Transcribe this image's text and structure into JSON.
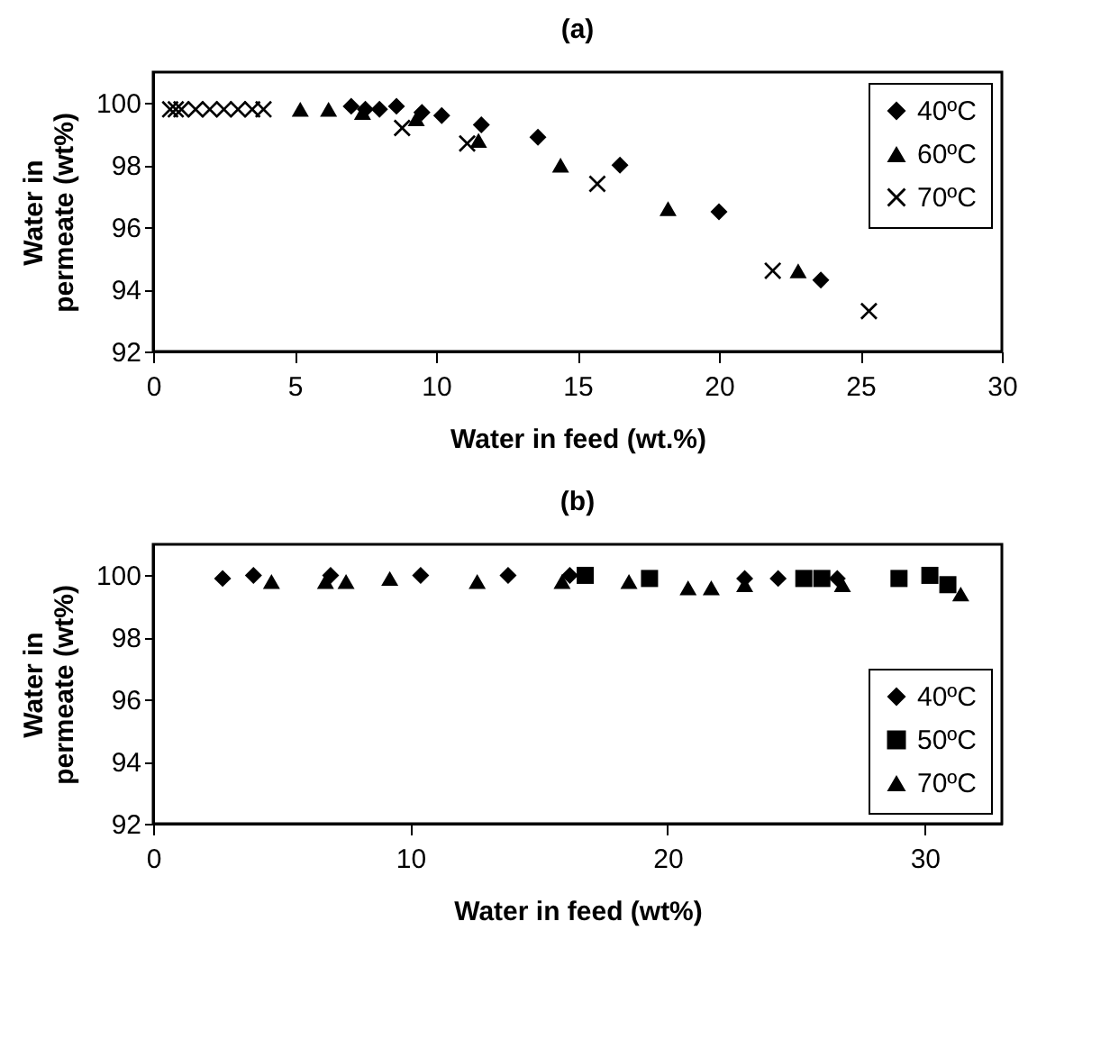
{
  "chart_data": [
    {
      "type": "scatter",
      "title": "(a)",
      "xlabel": "Water in feed (wt.%)",
      "ylabel": "Water in\npermeate (wt%)",
      "xlim": [
        0,
        30
      ],
      "xticks": [
        0,
        5,
        10,
        15,
        20,
        25,
        30
      ],
      "ylim": [
        92,
        101
      ],
      "yticks": [
        92,
        94,
        96,
        98,
        100
      ],
      "grid": false,
      "legend": "top right",
      "series": [
        {
          "name": "40ºC",
          "color": "#000000",
          "marker": "diamond",
          "x": [
            7.0,
            7.5,
            8.0,
            8.6,
            9.5,
            10.2,
            11.6,
            13.6,
            16.5,
            20.0,
            23.6
          ],
          "values": [
            99.9,
            99.8,
            99.8,
            99.9,
            99.7,
            99.6,
            99.3,
            98.9,
            98.0,
            96.5,
            94.3
          ]
        },
        {
          "name": "60ºC",
          "color": "#000000",
          "marker": "triangle",
          "x": [
            5.2,
            6.2,
            7.4,
            9.3,
            11.5,
            14.4,
            18.2,
            22.8
          ],
          "values": [
            99.8,
            99.8,
            99.7,
            99.5,
            98.8,
            98.0,
            96.6,
            94.6
          ]
        },
        {
          "name": "70ºC",
          "color": "#000000",
          "marker": "cross",
          "x": [
            0.6,
            0.8,
            1.0,
            1.5,
            2.0,
            2.5,
            3.0,
            3.5,
            3.9,
            8.8,
            11.1,
            15.7,
            21.9,
            25.3
          ],
          "values": [
            99.8,
            99.8,
            99.8,
            99.8,
            99.8,
            99.8,
            99.8,
            99.8,
            99.8,
            99.2,
            98.7,
            97.4,
            94.6,
            93.3
          ]
        }
      ]
    },
    {
      "type": "scatter",
      "title": "(b)",
      "xlabel": "Water in feed (wt%)",
      "ylabel": "Water in\npermeate (wt%)",
      "xlim": [
        0,
        33
      ],
      "xticks": [
        0,
        10,
        20,
        30
      ],
      "ylim": [
        92,
        101
      ],
      "yticks": [
        92,
        94,
        96,
        98,
        100
      ],
      "grid": false,
      "legend": "bottom right",
      "series": [
        {
          "name": "40ºC",
          "color": "#000000",
          "marker": "diamond",
          "x": [
            2.7,
            3.9,
            6.9,
            10.4,
            13.8,
            16.2,
            23.0,
            24.3,
            26.6
          ],
          "values": [
            99.9,
            100,
            100,
            100,
            100,
            100,
            99.9,
            99.9,
            99.9
          ]
        },
        {
          "name": "50ºC",
          "color": "#000000",
          "marker": "square",
          "x": [
            16.8,
            19.3,
            25.3,
            26.0,
            29.0,
            30.2,
            30.9
          ],
          "values": [
            100,
            99.9,
            99.9,
            99.9,
            99.9,
            100,
            99.7
          ]
        },
        {
          "name": "70ºC",
          "color": "#000000",
          "marker": "triangle",
          "x": [
            4.6,
            6.7,
            7.5,
            9.2,
            12.6,
            15.9,
            18.5,
            20.8,
            21.7,
            23.0,
            26.8,
            31.4
          ],
          "values": [
            99.8,
            99.8,
            99.8,
            99.9,
            99.8,
            99.8,
            99.8,
            99.6,
            99.6,
            99.7,
            99.7,
            99.4
          ]
        }
      ]
    }
  ]
}
